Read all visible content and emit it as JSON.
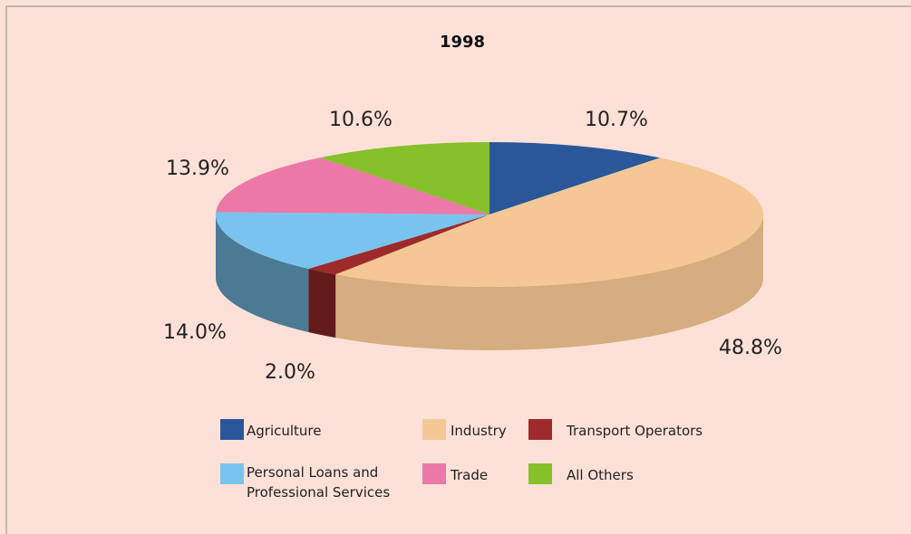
{
  "chart_data": {
    "type": "pie3d",
    "title": "1998",
    "categories": [
      "Agriculture",
      "Industry",
      "Transport Operators",
      "Personal Loans and Professional Services",
      "Trade",
      "All Others"
    ],
    "values": [
      10.7,
      48.8,
      2.0,
      14.0,
      13.9,
      10.6
    ],
    "value_labels": [
      "10.7%",
      "48.8%",
      "2.0%",
      "14.0%",
      "13.9%",
      "10.6%"
    ],
    "colors": [
      "#2a579a",
      "#f5c794",
      "#9e2a2b",
      "#79c4ef",
      "#ec78a8",
      "#86c02a"
    ],
    "legend": "bottom"
  }
}
